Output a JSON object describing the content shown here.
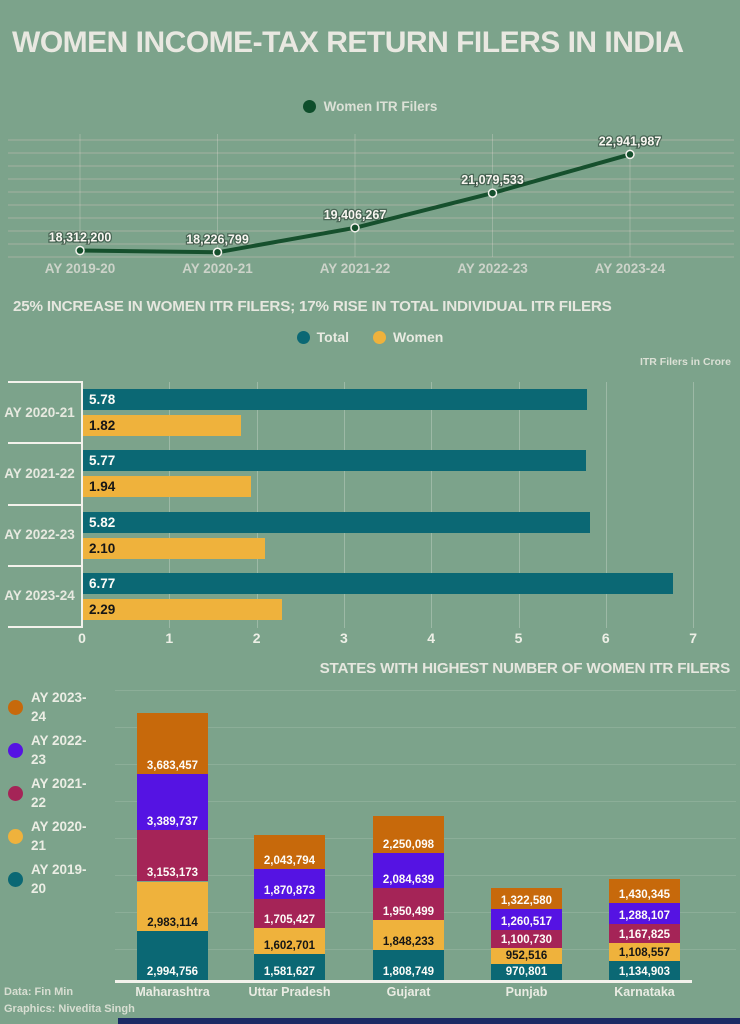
{
  "page": {
    "title": "WOMEN INCOME-TAX RETURN FILERS IN INDIA",
    "background_color": "#7ca38b",
    "footer": {
      "source": "Data: Fin Min",
      "credit": "Graphics: Nivedita Singh"
    }
  },
  "chart_data": [
    {
      "type": "line",
      "legend": "Women ITR Filers",
      "categories": [
        "AY 2019-20",
        "AY 2020-21",
        "AY 2021-22",
        "AY 2022-23",
        "AY 2023-24"
      ],
      "values": [
        18312200,
        18226799,
        19406267,
        21079533,
        22941987
      ],
      "line_color": "#16502d",
      "ylim": [
        18000000,
        23300000
      ],
      "grid": true,
      "legend_position": "top-center"
    },
    {
      "type": "bar",
      "orientation": "horizontal",
      "title": "25% INCREASE IN WOMEN ITR FILERS; 17% RISE IN TOTAL INDIVIDUAL ITR FILERS",
      "unit_note": "ITR Filers in Crore",
      "categories": [
        "AY 2020-21",
        "AY 2021-22",
        "AY 2022-23",
        "AY 2023-24"
      ],
      "series": [
        {
          "name": "Total",
          "color": "#0b6874",
          "values": [
            5.78,
            5.77,
            5.82,
            6.77
          ]
        },
        {
          "name": "Women",
          "color": "#efb23c",
          "values": [
            1.82,
            1.94,
            2.1,
            2.29
          ]
        }
      ],
      "xlim": [
        0,
        7
      ],
      "xticks": [
        0,
        1,
        2,
        3,
        4,
        5,
        6,
        7
      ],
      "grid": true,
      "legend_position": "top-center"
    },
    {
      "type": "bar",
      "subtype": "stacked",
      "title": "STATES WITH HIGHEST NUMBER OF WOMEN ITR FILERS",
      "categories": [
        "Maharashtra",
        "Uttar Pradesh",
        "Gujarat",
        "Punjab",
        "Karnataka"
      ],
      "series": [
        {
          "name": "AY 2019-20",
          "color": "#0b6874",
          "values": [
            2994756,
            1581627,
            1808749,
            970801,
            1134903
          ]
        },
        {
          "name": "AY 2020-21",
          "color": "#efb23c",
          "values": [
            2983114,
            1602701,
            1848233,
            952516,
            1108557
          ]
        },
        {
          "name": "AY 2021-22",
          "color": "#a52457",
          "values": [
            3153173,
            1705427,
            1950499,
            1100730,
            1167825
          ]
        },
        {
          "name": "AY 2022-23",
          "color": "#5513e3",
          "values": [
            3389737,
            1870873,
            2084639,
            1260517,
            1288107
          ]
        },
        {
          "name": "AY 2023-24",
          "color": "#c7690b",
          "values": [
            3683457,
            2043794,
            2250098,
            1322580,
            1430345
          ]
        }
      ],
      "legend_order": [
        "AY 2023-24",
        "AY 2022-23",
        "AY 2021-22",
        "AY 2020-21",
        "AY 2019-20"
      ],
      "legend_position": "left",
      "grid": true
    }
  ]
}
